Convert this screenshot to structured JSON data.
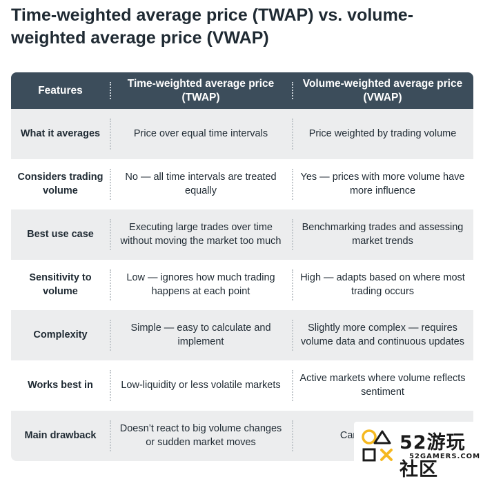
{
  "title": "Time-weighted average price (TWAP) vs. volume-weighted average price (VWAP)",
  "header": {
    "features": "Features",
    "twap": "Time-weighted average price (TWAP)",
    "vwap": "Volume-weighted average price (VWAP)"
  },
  "rows": [
    {
      "feature": "What it averages",
      "twap": "Price over equal time intervals",
      "vwap": "Price weighted by trading volume"
    },
    {
      "feature": "Considers trading volume",
      "twap": "No — all time intervals are treated equally",
      "vwap": "Yes — prices with more volume have more influence"
    },
    {
      "feature": "Best use case",
      "twap": "Executing large trades over time without moving the market too much",
      "vwap": "Benchmarking trades and assessing market trends"
    },
    {
      "feature": "Sensitivity to volume",
      "twap": "Low — ignores how much trading happens at each point",
      "vwap": "High — adapts based on where most trading occurs"
    },
    {
      "feature": "Complexity",
      "twap": "Simple — easy to calculate and implement",
      "vwap": "Slightly more complex — requires volume data and continuous updates"
    },
    {
      "feature": "Works best in",
      "twap": "Low-liquidity or less volatile markets",
      "vwap": "Active markets where volume reflects sentiment"
    },
    {
      "feature": "Main drawback",
      "twap": "Doesn’t react to big volume changes or sudden market moves",
      "vwap": "Can be s... or ma..."
    }
  ],
  "watermark": {
    "big": "52游玩社区",
    "small": "52GAMERS.COM"
  },
  "colors": {
    "header_bg": "#3c4d5b",
    "row_alt_bg": "#ecedee",
    "logo_accent": "#f5b820"
  }
}
